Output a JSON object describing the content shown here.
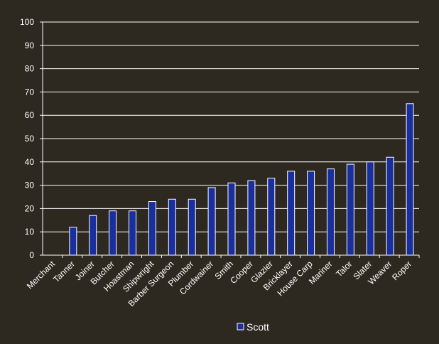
{
  "chart_data": {
    "type": "bar",
    "categories": [
      "Merchant",
      "Tanner",
      "Joiner",
      "Butcher",
      "Hoastman",
      "Shipwright",
      "Barber Surgeon",
      "Plumber",
      "Cordwainer",
      "Smith",
      "Cooper",
      "Glazier",
      "Bricklayer",
      "House Carp",
      "Mariner",
      "Talor",
      "Slater",
      "Weaver",
      "Roper"
    ],
    "series": [
      {
        "name": "Scott",
        "values": [
          0,
          12,
          17,
          19,
          19,
          23,
          24,
          24,
          29,
          31,
          32,
          33,
          36,
          36,
          37,
          39,
          40,
          42,
          65
        ]
      }
    ],
    "ylim": [
      0,
      100
    ],
    "yticks": [
      0,
      10,
      20,
      30,
      40,
      50,
      60,
      70,
      80,
      90,
      100
    ],
    "grid": true,
    "legend": "bottom",
    "colors": {
      "background": "#2d2820",
      "bar_fill": "#1a2f9e",
      "bar_stroke": "#ffffff",
      "grid": "#ffffff",
      "text": "#ffffff"
    }
  }
}
